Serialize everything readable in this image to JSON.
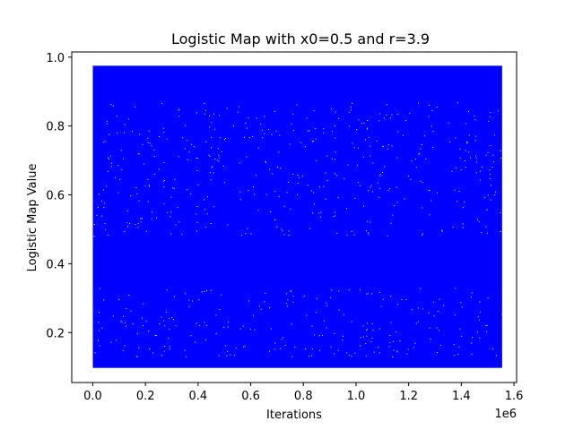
{
  "chart_data": {
    "type": "scatter",
    "title": "Logistic Map with x0=0.5 and r=3.9",
    "xlabel": "Iterations",
    "ylabel": "Logistic Map Value",
    "x_offset_label": "1e6",
    "xlim": [
      -0.08,
      1.61
    ],
    "ylim": [
      0.055,
      1.015
    ],
    "x_ticks": [
      0.0,
      0.2,
      0.4,
      0.6,
      0.8,
      1.0,
      1.2,
      1.4,
      1.6
    ],
    "x_tick_labels": [
      "0.0",
      "0.2",
      "0.4",
      "0.6",
      "0.8",
      "1.0",
      "1.2",
      "1.4",
      "1.6"
    ],
    "y_ticks": [
      0.2,
      0.4,
      0.6,
      0.8,
      1.0
    ],
    "y_tick_labels": [
      "0.2",
      "0.4",
      "0.6",
      "0.8",
      "1.0"
    ],
    "grid": false,
    "series": [
      {
        "color": "#0000ff",
        "x_range": [
          0.0,
          1.555
        ],
        "y_range": [
          0.0975,
          0.975
        ],
        "x0": 0.5,
        "r": 3.9
      }
    ]
  }
}
